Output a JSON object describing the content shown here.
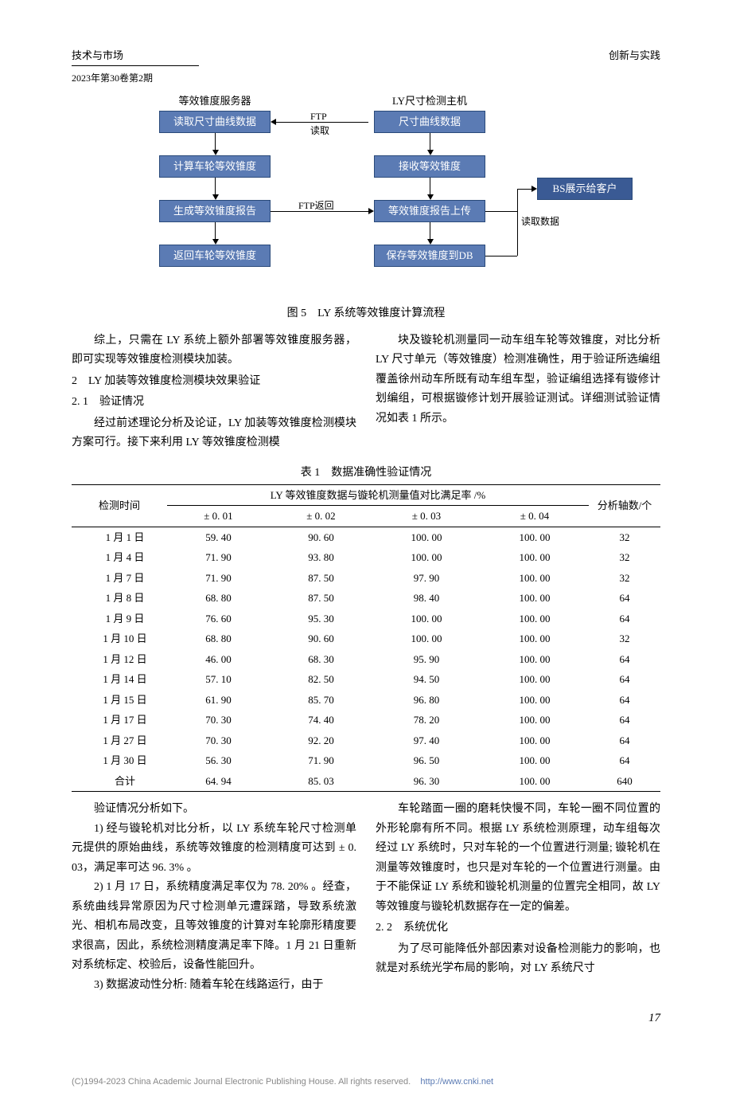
{
  "header": {
    "left_top": "技术与市场",
    "left_sub": "2023年第30卷第2期",
    "right_top": "创新与实践"
  },
  "flowchart": {
    "box_bg": "#5b7bb4",
    "box_border": "#2a4a7a",
    "client_bg": "#3a5a94",
    "group_left_label": "等效锥度服务器",
    "group_right_label": "LY尺寸检测主机",
    "left_boxes": [
      "读取尺寸曲线数据",
      "计算车轮等效锥度",
      "生成等效锥度报告",
      "返回车轮等效锥度"
    ],
    "right_boxes": [
      "尺寸曲线数据",
      "接收等效锥度",
      "等效锥度报告上传",
      "保存等效锥度到DB"
    ],
    "client_box": "BS展示给客户",
    "label_ftp_read": "FTP\n读取",
    "label_ftp_return": "FTP返回",
    "label_read_data": "读取数据",
    "caption": "图 5　LY 系统等效锥度计算流程"
  },
  "body": {
    "left": {
      "p1": "综上，只需在 LY 系统上额外部署等效锥度服务器，即可实现等效锥度检测模块加装。",
      "h2": "2　LY 加装等效锥度检测模块效果验证",
      "h3": "2. 1　验证情况",
      "p2": "经过前述理论分析及论证，LY 加装等效锥度检测模块方案可行。接下来利用 LY 等效锥度检测模"
    },
    "right": {
      "p1": "块及镟轮机测量同一动车组车轮等效锥度，对比分析 LY 尺寸单元（等效锥度）检测准确性，用于验证所选编组覆盖徐州动车所既有动车组车型，验证编组选择有镟修计划编组，可根据镟修计划开展验证测试。详细测试验证情况如表 1 所示。"
    }
  },
  "table": {
    "caption": "表 1　数据准确性验证情况",
    "header_span": "LY 等效锥度数据与镟轮机测量值对比满足率 /%",
    "col_time": "检测时间",
    "col_axes": "分析轴数/个",
    "sub_cols": [
      "± 0. 01",
      "± 0. 02",
      "± 0. 03",
      "± 0. 04"
    ],
    "rows": [
      {
        "date": "1 月 1 日",
        "v": [
          "59. 40",
          "90. 60",
          "100. 00",
          "100. 00"
        ],
        "n": "32"
      },
      {
        "date": "1 月 4 日",
        "v": [
          "71. 90",
          "93. 80",
          "100. 00",
          "100. 00"
        ],
        "n": "32"
      },
      {
        "date": "1 月 7 日",
        "v": [
          "71. 90",
          "87. 50",
          "97. 90",
          "100. 00"
        ],
        "n": "32"
      },
      {
        "date": "1 月 8 日",
        "v": [
          "68. 80",
          "87. 50",
          "98. 40",
          "100. 00"
        ],
        "n": "64"
      },
      {
        "date": "1 月 9 日",
        "v": [
          "76. 60",
          "95. 30",
          "100. 00",
          "100. 00"
        ],
        "n": "64"
      },
      {
        "date": "1 月 10 日",
        "v": [
          "68. 80",
          "90. 60",
          "100. 00",
          "100. 00"
        ],
        "n": "32"
      },
      {
        "date": "1 月 12 日",
        "v": [
          "46. 00",
          "68. 30",
          "95. 90",
          "100. 00"
        ],
        "n": "64"
      },
      {
        "date": "1 月 14 日",
        "v": [
          "57. 10",
          "82. 50",
          "94. 50",
          "100. 00"
        ],
        "n": "64"
      },
      {
        "date": "1 月 15 日",
        "v": [
          "61. 90",
          "85. 70",
          "96. 80",
          "100. 00"
        ],
        "n": "64"
      },
      {
        "date": "1 月 17 日",
        "v": [
          "70. 30",
          "74. 40",
          "78. 20",
          "100. 00"
        ],
        "n": "64"
      },
      {
        "date": "1 月 27 日",
        "v": [
          "70. 30",
          "92. 20",
          "97. 40",
          "100. 00"
        ],
        "n": "64"
      },
      {
        "date": "1 月 30 日",
        "v": [
          "56. 30",
          "71. 90",
          "96. 50",
          "100. 00"
        ],
        "n": "64"
      }
    ],
    "total": {
      "label": "合计",
      "v": [
        "64. 94",
        "85. 03",
        "96. 30",
        "100. 00"
      ],
      "n": "640"
    }
  },
  "body2": {
    "left": {
      "p0": "验证情况分析如下。",
      "p1": "1) 经与镟轮机对比分析，以 LY 系统车轮尺寸检测单元提供的原始曲线，系统等效锥度的检测精度可达到 ± 0. 03，满足率可达 96. 3% 。",
      "p2": "2) 1 月 17 日，系统精度满足率仅为 78. 20% 。经查，系统曲线异常原因为尺寸检测单元遭踩踏，导致系统激光、相机布局改变，且等效锥度的计算对车轮廓形精度要求很高，因此，系统检测精度满足率下降。1 月 21 日重新对系统标定、校验后，设备性能回升。",
      "p3": "3) 数据波动性分析: 随着车轮在线路运行，由于"
    },
    "right": {
      "p1": "车轮踏面一圈的磨耗快慢不同，车轮一圈不同位置的外形轮廓有所不同。根据 LY 系统检测原理，动车组每次经过 LY 系统时，只对车轮的一个位置进行测量; 镟轮机在测量等效锥度时，也只是对车轮的一个位置进行测量。由于不能保证 LY 系统和镟轮机测量的位置完全相同，故 LY 等效锥度与镟轮机数据存在一定的偏差。",
      "h3": "2. 2　系统优化",
      "p2": "为了尽可能降低外部因素对设备检测能力的影响，也就是对系统光学布局的影响，对 LY 系统尺寸"
    }
  },
  "page_number": "17",
  "footer": {
    "text": "(C)1994-2023 China Academic Journal Electronic Publishing House. All rights reserved.",
    "link": "http://www.cnki.net"
  }
}
